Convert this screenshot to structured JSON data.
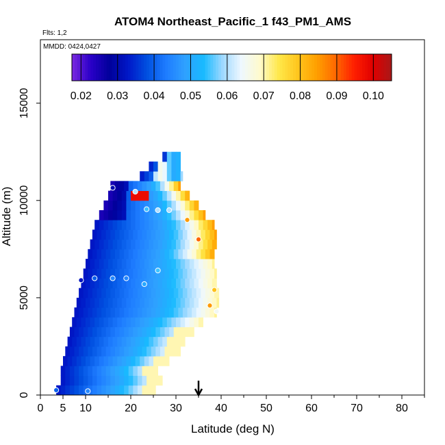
{
  "chart_data": {
    "type": "heatmap",
    "title": "ATOM4 Northeast_Pacific_1 f43_PM1_AMS",
    "flights_label": "Flts: 1,2",
    "date_label": "MMDD: 0424,0427",
    "xlabel": "Latitude (deg N)",
    "ylabel": "Altitude (m)",
    "xlim": [
      0,
      85
    ],
    "ylim": [
      0,
      17500
    ],
    "x_ticks": [
      0,
      5,
      10,
      20,
      30,
      40,
      50,
      60,
      70,
      80
    ],
    "y_ticks": [
      0,
      5000,
      10000,
      15000
    ],
    "colorbar": {
      "min": 0.0175,
      "max": 0.105,
      "ticks": [
        "0.02",
        "0.03",
        "0.04",
        "0.05",
        "0.06",
        "0.07",
        "0.08",
        "0.09",
        "0.10"
      ],
      "colors": [
        "#7b2ae0",
        "#2a00c8",
        "#00009a",
        "#0018c8",
        "#0050e0",
        "#1e7cff",
        "#2fa0ff",
        "#18baff",
        "#9dd8ff",
        "#eef8ff",
        "#fffacc",
        "#ffe84a",
        "#ffc61e",
        "#ffa000",
        "#ff6a00",
        "#ff1f00",
        "#e00000",
        "#a81818"
      ]
    },
    "marker": {
      "latitude": 35,
      "label": "arrow"
    },
    "field": {
      "alt_min": 0,
      "alt_max": 12500,
      "alt_step": 500,
      "lat_min": 3.5,
      "lat_step": 1,
      "rows": [
        {
          "alt": 250,
          "lat_start": 3.5,
          "lat_end": 25.5
        },
        {
          "alt": 750,
          "lat_start": 4.5,
          "lat_end": 27
        },
        {
          "alt": 1250,
          "lat_start": 4.5,
          "lat_end": 26
        },
        {
          "alt": 1750,
          "lat_start": 5,
          "lat_end": 28.5
        },
        {
          "alt": 2250,
          "lat_start": 5.5,
          "lat_end": 31
        },
        {
          "alt": 2750,
          "lat_start": 6,
          "lat_end": 32
        },
        {
          "alt": 3250,
          "lat_start": 6.5,
          "lat_end": 34
        },
        {
          "alt": 3750,
          "lat_start": 7,
          "lat_end": 36
        },
        {
          "alt": 4250,
          "lat_start": 7.5,
          "lat_end": 39
        },
        {
          "alt": 4750,
          "lat_start": 8,
          "lat_end": 39.5
        },
        {
          "alt": 5250,
          "lat_start": 8.5,
          "lat_end": 39.5
        },
        {
          "alt": 5750,
          "lat_start": 9,
          "lat_end": 39
        },
        {
          "alt": 6250,
          "lat_start": 9.5,
          "lat_end": 39
        },
        {
          "alt": 6750,
          "lat_start": 10,
          "lat_end": 38.5
        },
        {
          "alt": 7250,
          "lat_start": 10.5,
          "lat_end": 38.5
        },
        {
          "alt": 7750,
          "lat_start": 11,
          "lat_end": 39
        },
        {
          "alt": 8250,
          "lat_start": 11.5,
          "lat_end": 39
        },
        {
          "alt": 8750,
          "lat_start": 12,
          "lat_end": 38.5
        },
        {
          "alt": 9250,
          "lat_start": 13,
          "lat_end": 36.5
        },
        {
          "alt": 9750,
          "lat_start": 14,
          "lat_end": 35
        },
        {
          "alt": 10250,
          "lat_start": 15,
          "lat_end": 33
        },
        {
          "alt": 10750,
          "lat_start": 15.5,
          "lat_end": 31
        },
        {
          "alt": 11250,
          "lat_start": 22,
          "lat_end": 31.5
        },
        {
          "alt": 11750,
          "lat_start": 24,
          "lat_end": 31
        },
        {
          "alt": 12250,
          "lat_start": 27,
          "lat_end": 31
        }
      ]
    },
    "sample_points": [
      {
        "lat": 3.5,
        "alt": 250,
        "value": 0.04
      },
      {
        "lat": 10.5,
        "alt": 200,
        "value": 0.045
      },
      {
        "lat": 9,
        "alt": 5900,
        "value": 0.032
      },
      {
        "lat": 12,
        "alt": 6000,
        "value": 0.04
      },
      {
        "lat": 16,
        "alt": 6000,
        "value": 0.045
      },
      {
        "lat": 19,
        "alt": 6000,
        "value": 0.045
      },
      {
        "lat": 23,
        "alt": 5700,
        "value": 0.05
      },
      {
        "lat": 26,
        "alt": 6400,
        "value": 0.055
      },
      {
        "lat": 16,
        "alt": 10650,
        "value": 0.03
      },
      {
        "lat": 21,
        "alt": 10450,
        "value": 0.06
      },
      {
        "lat": 23.5,
        "alt": 9550,
        "value": 0.055
      },
      {
        "lat": 26,
        "alt": 9500,
        "value": 0.06
      },
      {
        "lat": 28.5,
        "alt": 9500,
        "value": 0.06
      },
      {
        "lat": 32.5,
        "alt": 9000,
        "value": 0.085
      },
      {
        "lat": 35,
        "alt": 8000,
        "value": 0.09
      },
      {
        "lat": 37.5,
        "alt": 4600,
        "value": 0.085
      },
      {
        "lat": 38.5,
        "alt": 5400,
        "value": 0.08
      },
      {
        "lat": 39,
        "alt": 4300,
        "value": 0.065
      }
    ]
  }
}
